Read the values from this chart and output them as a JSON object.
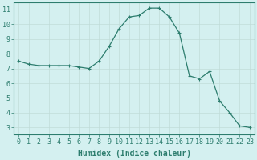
{
  "x": [
    0,
    1,
    2,
    3,
    4,
    5,
    6,
    7,
    8,
    9,
    10,
    11,
    12,
    13,
    14,
    15,
    16,
    17,
    18,
    19,
    20,
    21,
    22,
    23
  ],
  "y": [
    7.5,
    7.3,
    7.2,
    7.2,
    7.2,
    7.2,
    7.1,
    7.0,
    7.5,
    8.5,
    9.7,
    10.5,
    10.6,
    11.1,
    11.1,
    10.5,
    9.4,
    6.5,
    6.3,
    6.8,
    4.8,
    4.0,
    3.1,
    3.0
  ],
  "line_color": "#2d7d6e",
  "marker": "+",
  "marker_size": 3,
  "bg_color": "#d4f0f0",
  "grid_color": "#c0dcd8",
  "xlabel": "Humidex (Indice chaleur)",
  "xlabel_fontsize": 7,
  "tick_fontsize": 6,
  "xlim": [
    -0.5,
    23.5
  ],
  "ylim": [
    2.5,
    11.5
  ],
  "yticks": [
    3,
    4,
    5,
    6,
    7,
    8,
    9,
    10,
    11
  ],
  "xticks": [
    0,
    1,
    2,
    3,
    4,
    5,
    6,
    7,
    8,
    9,
    10,
    11,
    12,
    13,
    14,
    15,
    16,
    17,
    18,
    19,
    20,
    21,
    22,
    23
  ]
}
